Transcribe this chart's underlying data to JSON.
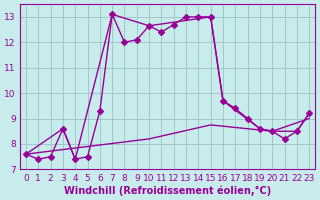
{
  "xlabel": "Windchill (Refroidissement éolien,°C)",
  "bg_color": "#c8ecec",
  "grid_color": "#a0c8c8",
  "line_color": "#990099",
  "xlim": [
    -0.5,
    23.5
  ],
  "ylim": [
    7.0,
    13.5
  ],
  "yticks": [
    7,
    8,
    9,
    10,
    11,
    12,
    13
  ],
  "xticks": [
    0,
    1,
    2,
    3,
    4,
    5,
    6,
    7,
    8,
    9,
    10,
    11,
    12,
    13,
    14,
    15,
    16,
    17,
    18,
    19,
    20,
    21,
    22,
    23
  ],
  "series1_x": [
    0,
    1,
    2,
    3,
    4,
    5,
    6,
    7,
    8,
    9,
    10,
    11,
    12,
    13,
    14,
    15,
    16,
    17,
    18,
    19,
    20,
    21,
    22,
    23
  ],
  "series1_y": [
    7.6,
    7.4,
    7.5,
    8.6,
    7.4,
    7.5,
    9.3,
    13.1,
    12.0,
    12.1,
    12.65,
    12.4,
    12.7,
    13.0,
    13.0,
    13.0,
    9.7,
    9.4,
    9.0,
    8.6,
    8.5,
    8.2,
    8.5,
    9.2
  ],
  "series2_x": [
    0,
    3,
    4,
    7,
    10,
    15,
    16,
    19,
    20,
    22,
    23
  ],
  "series2_y": [
    7.6,
    8.6,
    7.4,
    13.1,
    12.65,
    13.0,
    9.7,
    8.6,
    8.5,
    8.5,
    9.2
  ],
  "series3_x": [
    0,
    5,
    10,
    15,
    20,
    23
  ],
  "series3_y": [
    7.6,
    7.9,
    8.2,
    8.75,
    8.5,
    9.0
  ],
  "marker_size": 3,
  "line_width": 1.0,
  "xlabel_fontsize": 7,
  "tick_fontsize": 6.5
}
